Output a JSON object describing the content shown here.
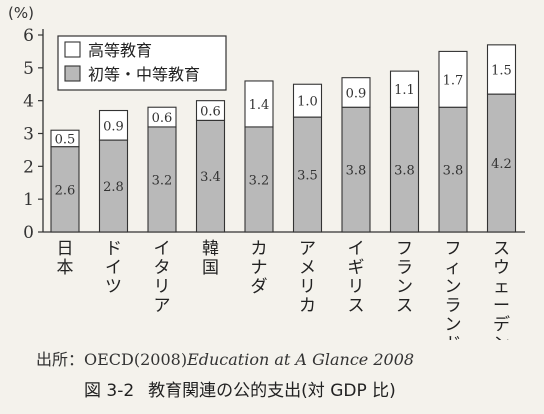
{
  "chart_data": {
    "type": "bar",
    "stacked": true,
    "y_unit_label": "(%)",
    "ylim": [
      0,
      6
    ],
    "yticks": [
      0,
      1,
      2,
      3,
      4,
      5,
      6
    ],
    "categories": [
      "日本",
      "ドイツ",
      "イタリア",
      "韓国",
      "カナダ",
      "アメリカ",
      "イギリス",
      "フランス",
      "フィンランド",
      "スウェーデン"
    ],
    "series": [
      {
        "name": "初等・中等教育",
        "color": "#b9b9b9",
        "values": [
          2.6,
          2.8,
          3.2,
          3.4,
          3.2,
          3.5,
          3.8,
          3.8,
          3.8,
          4.2
        ]
      },
      {
        "name": "高等教育",
        "color": "#ffffff",
        "values": [
          0.5,
          0.9,
          0.6,
          0.6,
          1.4,
          1.0,
          0.9,
          1.1,
          1.7,
          1.5
        ]
      }
    ],
    "value_labels": {
      "lower": [
        "2.6",
        "2.8",
        "3.2",
        "3.4",
        "3.2",
        "3.5",
        "3.8",
        "3.8",
        "3.8",
        "4.2"
      ],
      "upper": [
        "0.5",
        "0.9",
        "0.6",
        "0.6",
        "1.4",
        "1.0",
        "0.9",
        "1.1",
        "1.7",
        "1.5"
      ]
    },
    "legend": {
      "placement": "top-left",
      "items": [
        {
          "label": "高等教育",
          "color": "#ffffff"
        },
        {
          "label": "初等・中等教育",
          "color": "#b9b9b9"
        }
      ]
    },
    "grid": false
  },
  "captions": {
    "source_prefix": "出所：OECD(2008)",
    "source_publication": "Education at A Glance 2008",
    "figure_number": "図 3-2",
    "figure_title": "教育関連の公的支出(対 GDP 比)"
  }
}
